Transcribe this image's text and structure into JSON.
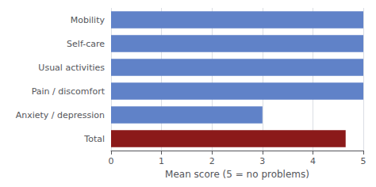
{
  "chart_data": {
    "type": "bar",
    "orientation": "horizontal",
    "categories": [
      "Total",
      "Anxiety / depression",
      "Pain / discomfort",
      "Usual activities",
      "Self-care",
      "Mobility"
    ],
    "values": [
      4.65,
      3.0,
      5.0,
      5.0,
      5.0,
      5.0
    ],
    "colors": [
      "#8B1A1A",
      "#6082C8",
      "#6082C8",
      "#6082C8",
      "#6082C8",
      "#6082C8"
    ],
    "xlabel": "Mean score (5 = no problems)",
    "xlim": [
      0,
      5
    ],
    "xticks": [
      0,
      1,
      2,
      3,
      4,
      5
    ],
    "grid": true
  }
}
